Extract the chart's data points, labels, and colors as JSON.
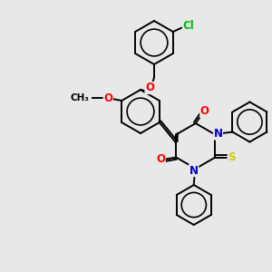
{
  "background_color": "#e8e8e8",
  "bond_color": "#000000",
  "atom_colors": {
    "O": "#ff0000",
    "N": "#0000cc",
    "S": "#cccc00",
    "Cl": "#00bb00",
    "C": "#000000"
  },
  "lw": 1.4,
  "ring_r": 22
}
